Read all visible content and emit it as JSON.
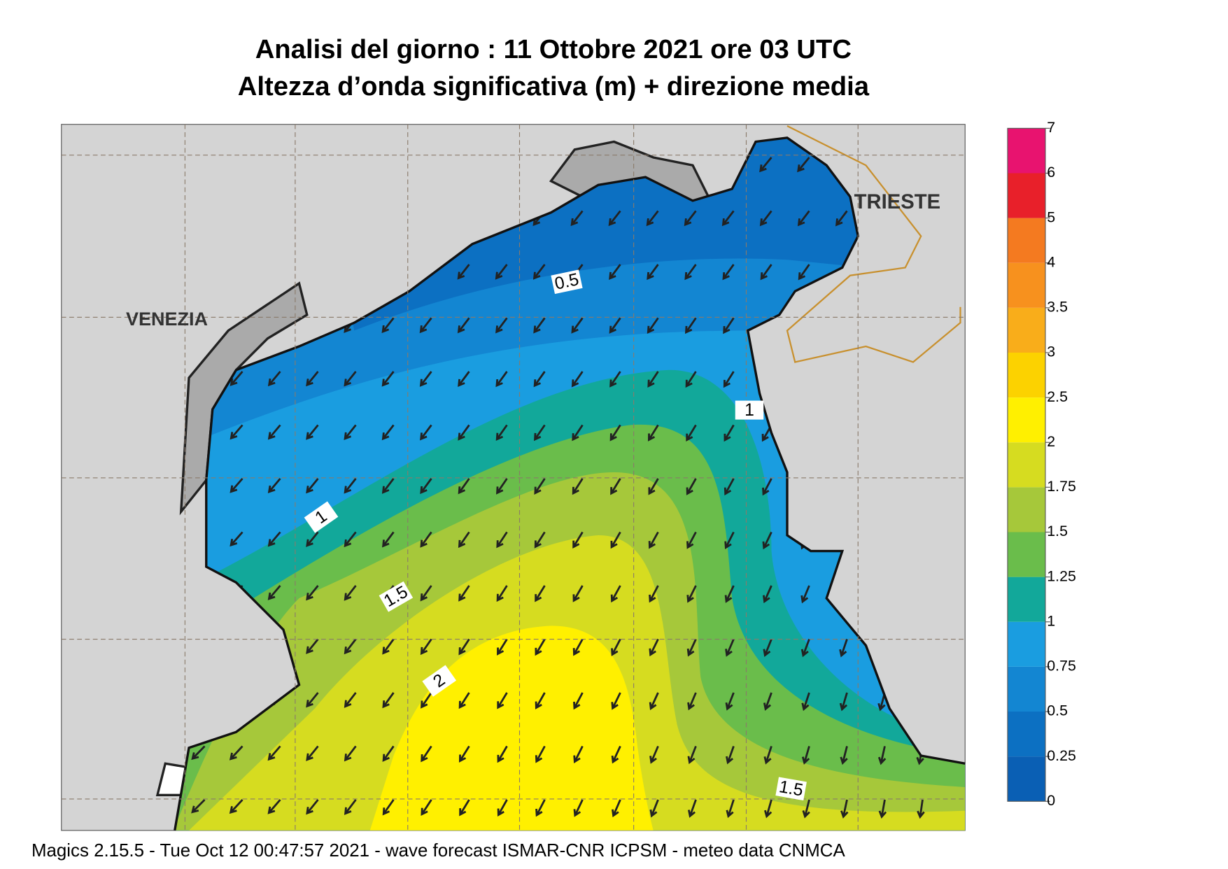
{
  "title": [
    "Analisi del giorno :  11  Ottobre  2021   ore 03 UTC",
    "Altezza d’onda significativa (m) + direzione media"
  ],
  "places": [
    "VENEZIA",
    "TRIESTE"
  ],
  "contour_labels": [
    0.5,
    1,
    1,
    1.5,
    2,
    1.5
  ],
  "colorbar": {
    "ticks": [
      0,
      0.25,
      0.5,
      0.75,
      1,
      1.25,
      1.5,
      1.75,
      2,
      2.5,
      3,
      3.5,
      4,
      5,
      6,
      7
    ],
    "colors": [
      "#0a5fb4",
      "#0c70c2",
      "#1386d2",
      "#1a9de0",
      "#12a89a",
      "#6abd4b",
      "#a6c83a",
      "#d6dc20",
      "#fff000",
      "#fcd200",
      "#f9ad1a",
      "#f7911e",
      "#f47a20",
      "#e8202a",
      "#e8136f"
    ]
  },
  "footer": "Magics 2.15.5 - Tue Oct 12 00:47:57 2021 - wave forecast  ISMAR-CNR  ICPSM - meteo data   CNMCA"
}
